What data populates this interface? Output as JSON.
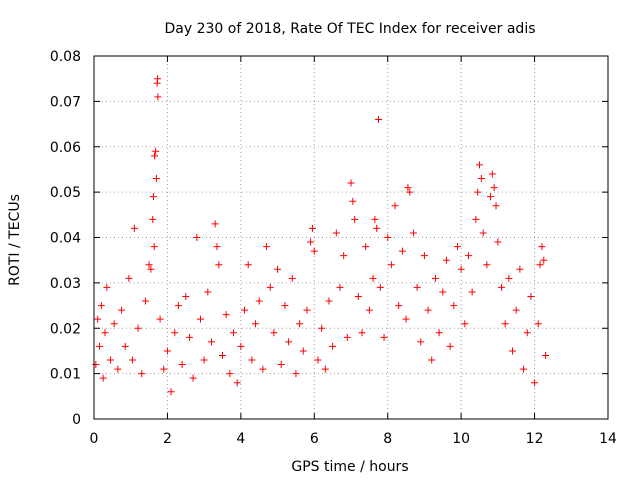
{
  "chart_data": {
    "type": "scatter",
    "title": "Day 230 of 2018, Rate Of TEC Index for receiver adis",
    "xlabel": "GPS time / hours",
    "ylabel": "ROTI / TECUs",
    "xlim": [
      0,
      14
    ],
    "ylim": [
      0,
      0.08
    ],
    "xticks": [
      0,
      2,
      4,
      6,
      8,
      10,
      12,
      14
    ],
    "xtick_labels": [
      "0",
      "2",
      "4",
      "6",
      "8",
      "10",
      "12",
      "14"
    ],
    "yticks": [
      0,
      0.01,
      0.02,
      0.03,
      0.04,
      0.05,
      0.06,
      0.07,
      0.08
    ],
    "ytick_labels": [
      "0",
      "0.01",
      "0.02",
      "0.03",
      "0.04",
      "0.05",
      "0.06",
      "0.07",
      "0.08"
    ],
    "grid": true,
    "marker": "+",
    "marker_color": "#ff0000",
    "series": [
      {
        "name": "ROTI",
        "points": [
          [
            0.05,
            0.012
          ],
          [
            0.1,
            0.022
          ],
          [
            0.15,
            0.016
          ],
          [
            0.2,
            0.025
          ],
          [
            0.25,
            0.009
          ],
          [
            0.3,
            0.019
          ],
          [
            0.35,
            0.029
          ],
          [
            0.45,
            0.013
          ],
          [
            0.55,
            0.021
          ],
          [
            0.65,
            0.011
          ],
          [
            0.75,
            0.024
          ],
          [
            0.85,
            0.016
          ],
          [
            0.95,
            0.031
          ],
          [
            1.05,
            0.013
          ],
          [
            1.1,
            0.042
          ],
          [
            1.2,
            0.02
          ],
          [
            1.3,
            0.01
          ],
          [
            1.4,
            0.026
          ],
          [
            1.5,
            0.034
          ],
          [
            1.55,
            0.033
          ],
          [
            1.6,
            0.044
          ],
          [
            1.62,
            0.049
          ],
          [
            1.64,
            0.038
          ],
          [
            1.65,
            0.058
          ],
          [
            1.68,
            0.059
          ],
          [
            1.7,
            0.053
          ],
          [
            1.72,
            0.074
          ],
          [
            1.73,
            0.075
          ],
          [
            1.74,
            0.071
          ],
          [
            1.8,
            0.022
          ],
          [
            1.9,
            0.011
          ],
          [
            2.0,
            0.015
          ],
          [
            2.1,
            0.006
          ],
          [
            2.2,
            0.019
          ],
          [
            2.3,
            0.025
          ],
          [
            2.4,
            0.012
          ],
          [
            2.5,
            0.027
          ],
          [
            2.6,
            0.018
          ],
          [
            2.7,
            0.009
          ],
          [
            2.8,
            0.04
          ],
          [
            2.9,
            0.022
          ],
          [
            3.0,
            0.013
          ],
          [
            3.1,
            0.028
          ],
          [
            3.2,
            0.017
          ],
          [
            3.3,
            0.043
          ],
          [
            3.35,
            0.038
          ],
          [
            3.4,
            0.034
          ],
          [
            3.5,
            0.014
          ],
          [
            3.6,
            0.023
          ],
          [
            3.7,
            0.01
          ],
          [
            3.8,
            0.019
          ],
          [
            3.9,
            0.008
          ],
          [
            4.0,
            0.016
          ],
          [
            4.1,
            0.024
          ],
          [
            4.2,
            0.034
          ],
          [
            4.3,
            0.013
          ],
          [
            4.4,
            0.021
          ],
          [
            4.5,
            0.026
          ],
          [
            4.6,
            0.011
          ],
          [
            4.7,
            0.038
          ],
          [
            4.8,
            0.029
          ],
          [
            4.9,
            0.019
          ],
          [
            5.0,
            0.033
          ],
          [
            5.1,
            0.012
          ],
          [
            5.2,
            0.025
          ],
          [
            5.3,
            0.017
          ],
          [
            5.4,
            0.031
          ],
          [
            5.5,
            0.01
          ],
          [
            5.6,
            0.021
          ],
          [
            5.7,
            0.015
          ],
          [
            5.8,
            0.024
          ],
          [
            5.9,
            0.039
          ],
          [
            5.95,
            0.042
          ],
          [
            6.0,
            0.037
          ],
          [
            6.1,
            0.013
          ],
          [
            6.2,
            0.02
          ],
          [
            6.3,
            0.011
          ],
          [
            6.4,
            0.026
          ],
          [
            6.5,
            0.016
          ],
          [
            6.6,
            0.041
          ],
          [
            6.7,
            0.029
          ],
          [
            6.8,
            0.036
          ],
          [
            6.9,
            0.018
          ],
          [
            7.0,
            0.052
          ],
          [
            7.05,
            0.048
          ],
          [
            7.1,
            0.044
          ],
          [
            7.2,
            0.027
          ],
          [
            7.3,
            0.019
          ],
          [
            7.4,
            0.038
          ],
          [
            7.5,
            0.024
          ],
          [
            7.6,
            0.031
          ],
          [
            7.65,
            0.044
          ],
          [
            7.7,
            0.042
          ],
          [
            7.75,
            0.066
          ],
          [
            7.8,
            0.029
          ],
          [
            7.9,
            0.018
          ],
          [
            8.0,
            0.04
          ],
          [
            8.1,
            0.034
          ],
          [
            8.2,
            0.047
          ],
          [
            8.3,
            0.025
          ],
          [
            8.4,
            0.037
          ],
          [
            8.5,
            0.022
          ],
          [
            8.55,
            0.051
          ],
          [
            8.6,
            0.05
          ],
          [
            8.7,
            0.041
          ],
          [
            8.8,
            0.029
          ],
          [
            8.9,
            0.017
          ],
          [
            9.0,
            0.036
          ],
          [
            9.1,
            0.024
          ],
          [
            9.2,
            0.013
          ],
          [
            9.3,
            0.031
          ],
          [
            9.4,
            0.019
          ],
          [
            9.5,
            0.028
          ],
          [
            9.6,
            0.035
          ],
          [
            9.7,
            0.016
          ],
          [
            9.8,
            0.025
          ],
          [
            9.9,
            0.038
          ],
          [
            10.0,
            0.033
          ],
          [
            10.1,
            0.021
          ],
          [
            10.2,
            0.036
          ],
          [
            10.3,
            0.028
          ],
          [
            10.4,
            0.044
          ],
          [
            10.45,
            0.05
          ],
          [
            10.5,
            0.056
          ],
          [
            10.55,
            0.053
          ],
          [
            10.6,
            0.041
          ],
          [
            10.7,
            0.034
          ],
          [
            10.8,
            0.049
          ],
          [
            10.85,
            0.054
          ],
          [
            10.9,
            0.051
          ],
          [
            10.95,
            0.047
          ],
          [
            11.0,
            0.039
          ],
          [
            11.1,
            0.029
          ],
          [
            11.2,
            0.021
          ],
          [
            11.3,
            0.031
          ],
          [
            11.4,
            0.015
          ],
          [
            11.5,
            0.024
          ],
          [
            11.6,
            0.033
          ],
          [
            11.7,
            0.011
          ],
          [
            11.8,
            0.019
          ],
          [
            11.9,
            0.027
          ],
          [
            12.0,
            0.008
          ],
          [
            12.1,
            0.021
          ],
          [
            12.15,
            0.034
          ],
          [
            12.2,
            0.038
          ],
          [
            12.25,
            0.035
          ],
          [
            12.3,
            0.014
          ]
        ]
      }
    ]
  }
}
